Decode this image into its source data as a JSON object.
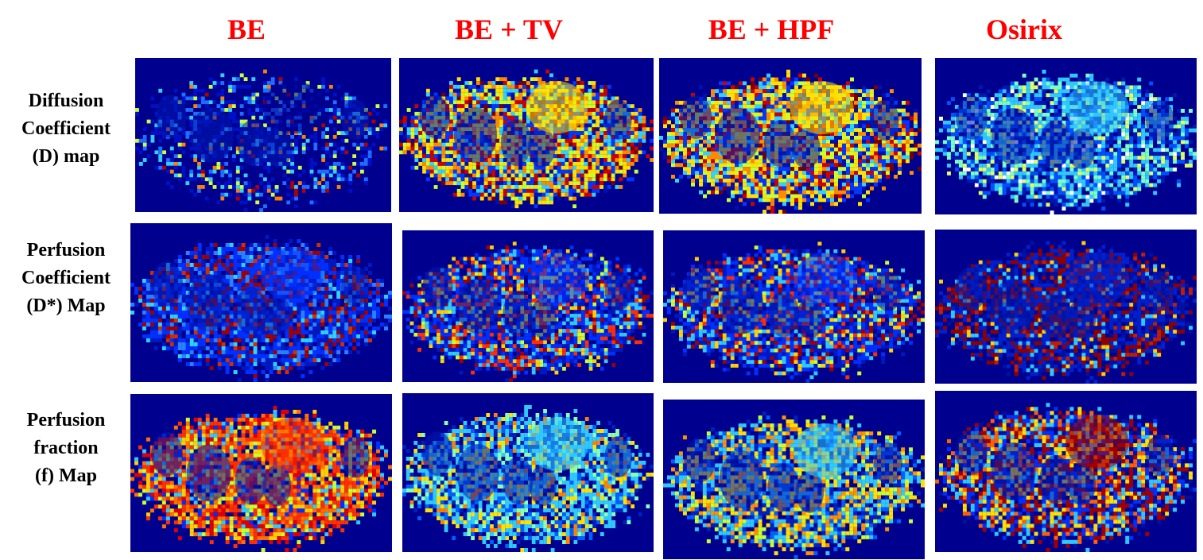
{
  "colors": {
    "header_text": "#ff0000",
    "label_text": "#000000",
    "map_background": "#00008f"
  },
  "column_headers": [
    "BE",
    "BE + TV",
    "BE + HPF",
    "Osirix"
  ],
  "row_labels": [
    [
      "Diffusion",
      "Coefficient",
      "(D) map"
    ],
    [
      "Perfusion",
      "Coefficient",
      "(D*) Map"
    ],
    [
      "Perfusion",
      "fraction",
      "(f) Map"
    ]
  ],
  "maps": [
    {
      "row": 0,
      "col": 0,
      "icon": "sparse-diffusion-map",
      "palette": "mostly-blue-sparse"
    },
    {
      "row": 0,
      "col": 1,
      "icon": "yellow-red-diffusion-map",
      "palette": "cyan-yellow-red"
    },
    {
      "row": 0,
      "col": 2,
      "icon": "yellow-red-diffusion-map",
      "palette": "cyan-yellow-red"
    },
    {
      "row": 0,
      "col": 3,
      "icon": "cyan-diffusion-map",
      "palette": "cyan-dominant"
    },
    {
      "row": 1,
      "col": 0,
      "icon": "blue-perfusion-map",
      "palette": "blue-with-dark-red"
    },
    {
      "row": 1,
      "col": 1,
      "icon": "mixed-perfusion-map",
      "palette": "blue-cyan-red"
    },
    {
      "row": 1,
      "col": 2,
      "icon": "mixed-perfusion-map",
      "palette": "blue-cyan-red"
    },
    {
      "row": 1,
      "col": 3,
      "icon": "red-speckled-perfusion-map",
      "palette": "blue-dark-red-speckled"
    },
    {
      "row": 2,
      "col": 0,
      "icon": "red-orange-fraction-map",
      "palette": "red-orange-yellow"
    },
    {
      "row": 2,
      "col": 1,
      "icon": "cyan-fraction-map",
      "palette": "cyan-yellow"
    },
    {
      "row": 2,
      "col": 2,
      "icon": "cyan-fraction-map",
      "palette": "cyan-yellow-orange"
    },
    {
      "row": 2,
      "col": 3,
      "icon": "mixed-fraction-map",
      "palette": "red-yellow-blue-mixed"
    }
  ]
}
